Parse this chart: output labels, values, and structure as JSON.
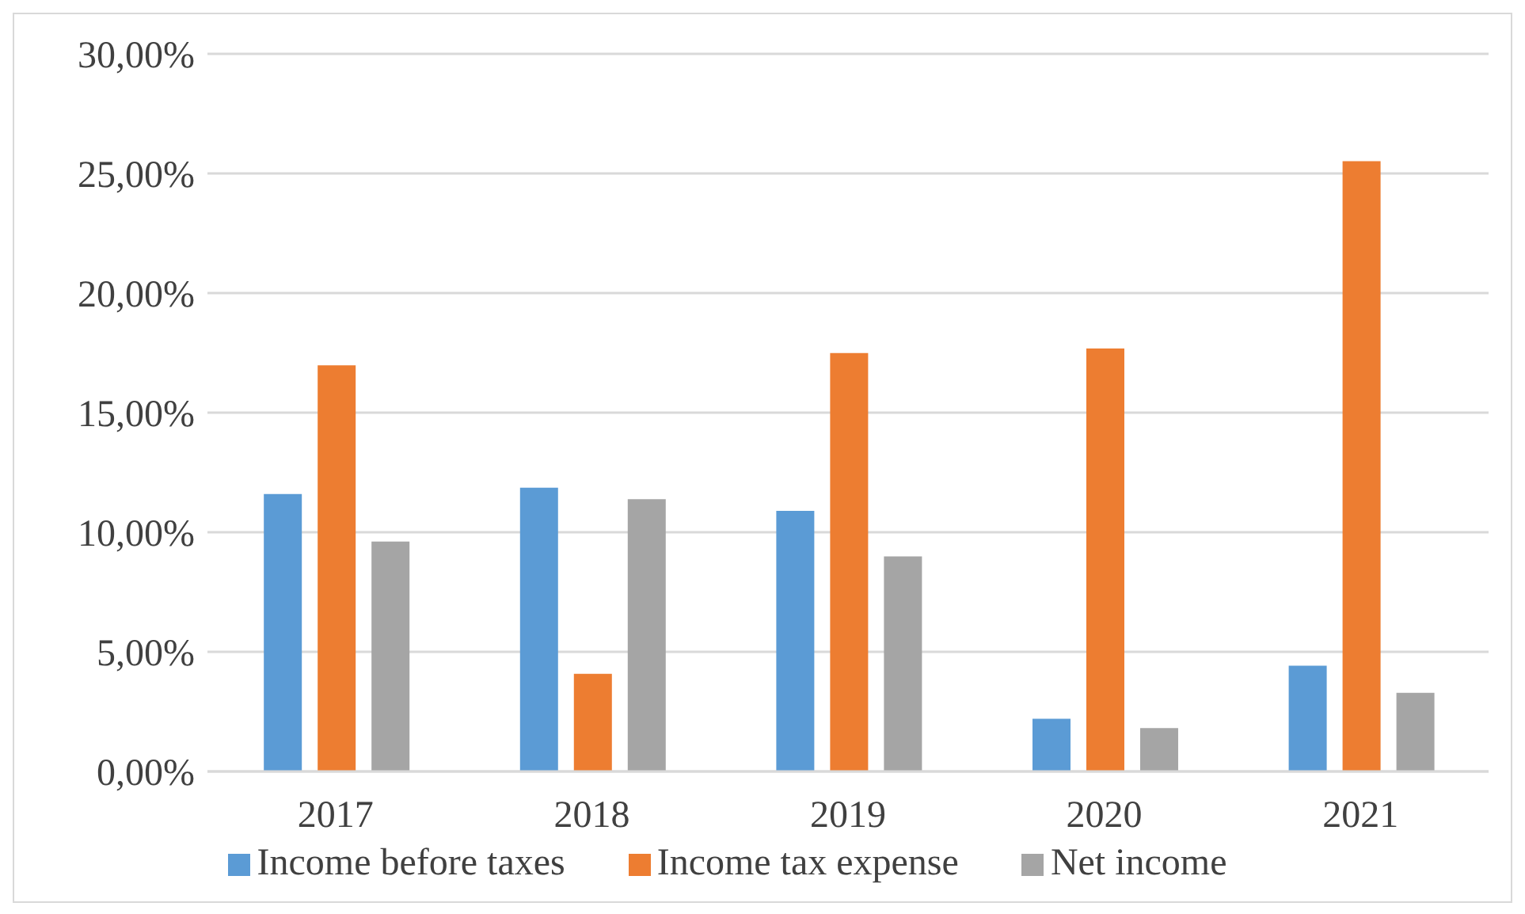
{
  "chart_data": {
    "type": "bar",
    "categories": [
      "2017",
      "2018",
      "2019",
      "2020",
      "2021"
    ],
    "series": [
      {
        "name": "Income before taxes",
        "color": "#5b9bd5",
        "values": [
          11.6,
          11.86,
          10.89,
          2.2,
          4.42
        ]
      },
      {
        "name": "Income tax expense",
        "color": "#ed7d31",
        "values": [
          16.98,
          4.08,
          17.49,
          17.68,
          25.51
        ]
      },
      {
        "name": "Net income",
        "color": "#a5a5a5",
        "values": [
          9.61,
          11.38,
          8.99,
          1.81,
          3.29
        ]
      }
    ],
    "ylim": [
      0,
      30
    ],
    "yticks": [
      {
        "value": 0,
        "label": "0,00%"
      },
      {
        "value": 5,
        "label": "5,00%"
      },
      {
        "value": 10,
        "label": "10,00%"
      },
      {
        "value": 15,
        "label": "15,00%"
      },
      {
        "value": 20,
        "label": "20,00%"
      },
      {
        "value": 25,
        "label": "25,00%"
      },
      {
        "value": 30,
        "label": "30,00%"
      }
    ],
    "grid": "y",
    "legend": "bottom"
  }
}
